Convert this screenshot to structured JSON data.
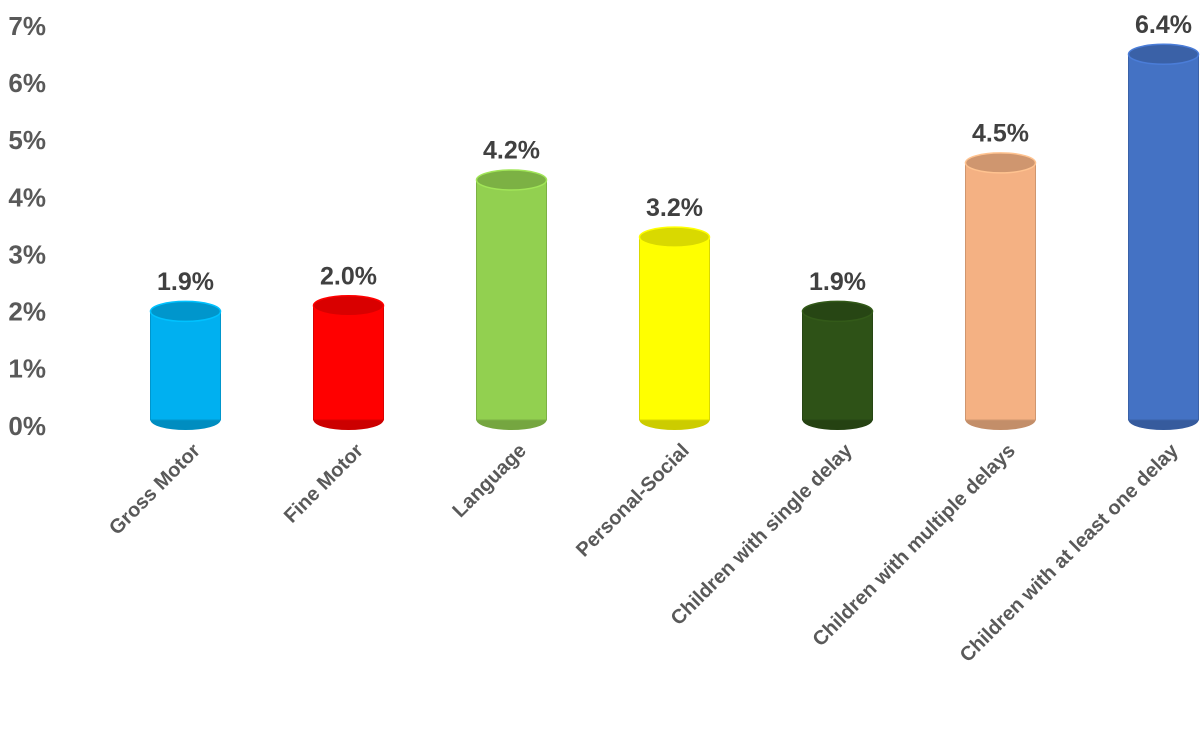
{
  "chart_data": {
    "type": "bar",
    "categories": [
      "Gross Motor",
      "Fine Motor",
      "Language",
      "Personal-Social",
      "Children with single delay",
      "Children with multiple delays",
      "Children with at least one delay"
    ],
    "values": [
      1.9,
      2.0,
      4.2,
      3.2,
      1.9,
      4.5,
      6.4
    ],
    "value_labels": [
      "1.9%",
      "2.0%",
      "4.2%",
      "3.2%",
      "1.9%",
      "4.5%",
      "6.4%"
    ],
    "colors": [
      "#00b0f0",
      "#ff0000",
      "#92d050",
      "#ffff00",
      "#2e5217",
      "#f4b183",
      "#4472c4"
    ],
    "ylim": [
      0,
      7
    ],
    "yticks": [
      {
        "value": 0,
        "label": "0%"
      },
      {
        "value": 1,
        "label": "1%"
      },
      {
        "value": 2,
        "label": "2%"
      },
      {
        "value": 3,
        "label": "3%"
      },
      {
        "value": 4,
        "label": "4%"
      },
      {
        "value": 5,
        "label": "5%"
      },
      {
        "value": 6,
        "label": "6%"
      },
      {
        "value": 7,
        "label": "7%"
      }
    ],
    "grid": false
  }
}
